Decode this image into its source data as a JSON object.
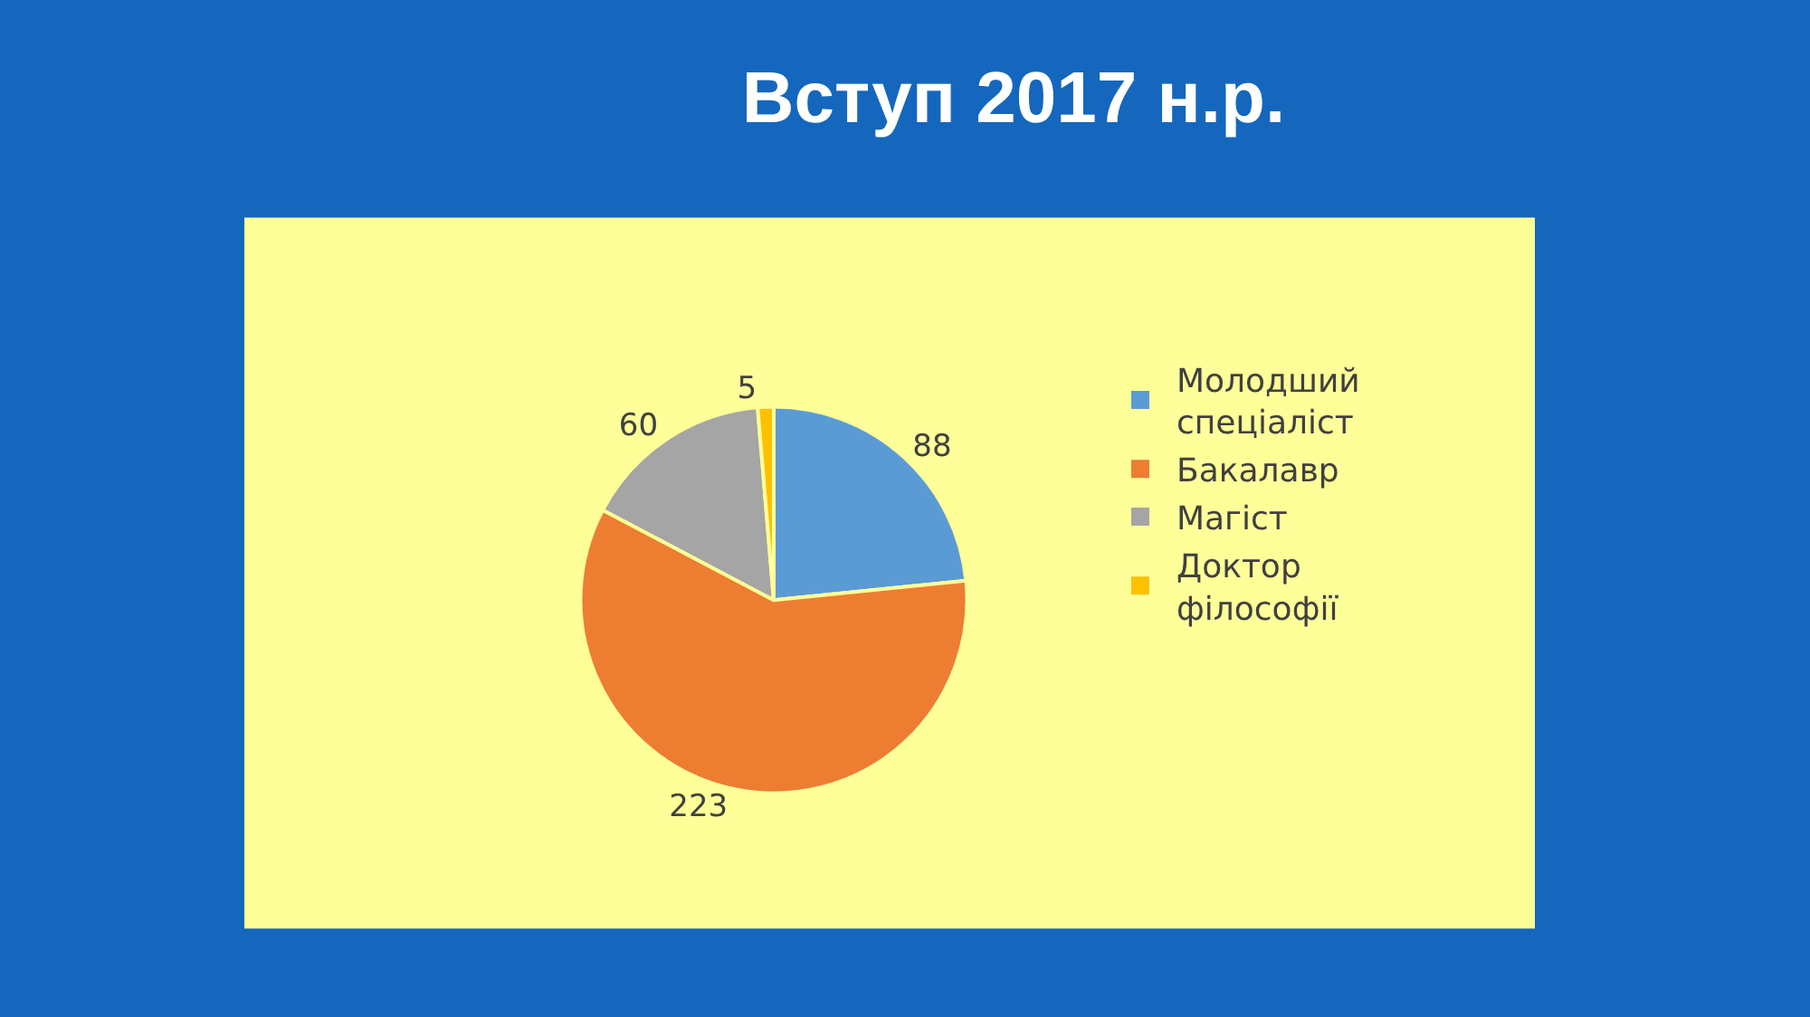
{
  "chart_data": {
    "type": "pie",
    "title": "Вступ 2017 н.р.",
    "categories": [
      "Молодший спеціаліст",
      "Бакалавр",
      "Магіст",
      "Доктор філософії"
    ],
    "values": [
      88,
      223,
      60,
      5
    ],
    "colors": [
      "#5b9bd5",
      "#ed7d31",
      "#a5a5a5",
      "#ffc000"
    ],
    "data_labels": true,
    "legend": "right"
  }
}
